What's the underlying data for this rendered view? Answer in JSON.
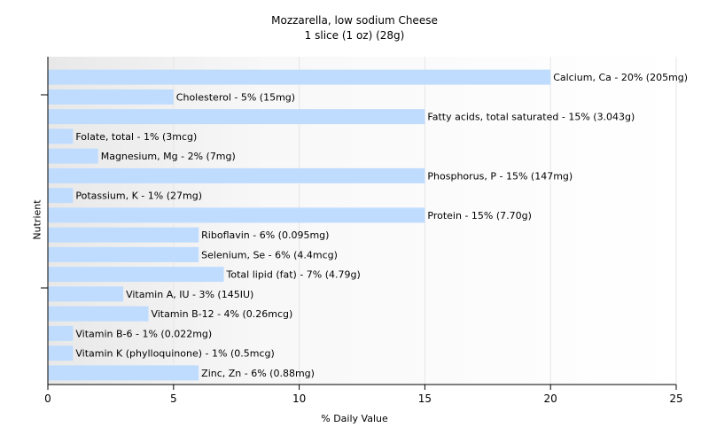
{
  "chart_data": {
    "type": "bar",
    "orientation": "horizontal",
    "title": "Mozzarella, low sodium Cheese",
    "subtitle": "1 slice (1 oz) (28g)",
    "xlabel": "% Daily Value",
    "ylabel": "Nutrient",
    "xlim": [
      0,
      25
    ],
    "xticks": [
      0,
      5,
      10,
      15,
      20,
      25
    ],
    "grid": true,
    "bar_color": "#bfdcff",
    "categories": [
      "Calcium, Ca",
      "Cholesterol",
      "Fatty acids, total saturated",
      "Folate, total",
      "Magnesium, Mg",
      "Phosphorus, P",
      "Potassium, K",
      "Protein",
      "Riboflavin",
      "Selenium, Se",
      "Total lipid (fat)",
      "Vitamin A, IU",
      "Vitamin B-12",
      "Vitamin B-6",
      "Vitamin K (phylloquinone)",
      "Zinc, Zn"
    ],
    "values": [
      20,
      5,
      15,
      1,
      2,
      15,
      1,
      15,
      6,
      6,
      7,
      3,
      4,
      1,
      1,
      6
    ],
    "labels": [
      "Calcium, Ca - 20% (205mg)",
      "Cholesterol - 5% (15mg)",
      "Fatty acids, total saturated - 15% (3.043g)",
      "Folate, total - 1% (3mcg)",
      "Magnesium, Mg - 2% (7mg)",
      "Phosphorus, P - 15% (147mg)",
      "Potassium, K - 1% (27mg)",
      "Protein - 15% (7.70g)",
      "Riboflavin - 6% (0.095mg)",
      "Selenium, Se - 6% (4.4mcg)",
      "Total lipid (fat) - 7% (4.79g)",
      "Vitamin A, IU - 3% (145IU)",
      "Vitamin B-12 - 4% (0.26mcg)",
      "Vitamin B-6 - 1% (0.022mg)",
      "Vitamin K (phylloquinone) - 1% (0.5mcg)",
      "Zinc, Zn - 6% (0.88mg)"
    ]
  }
}
